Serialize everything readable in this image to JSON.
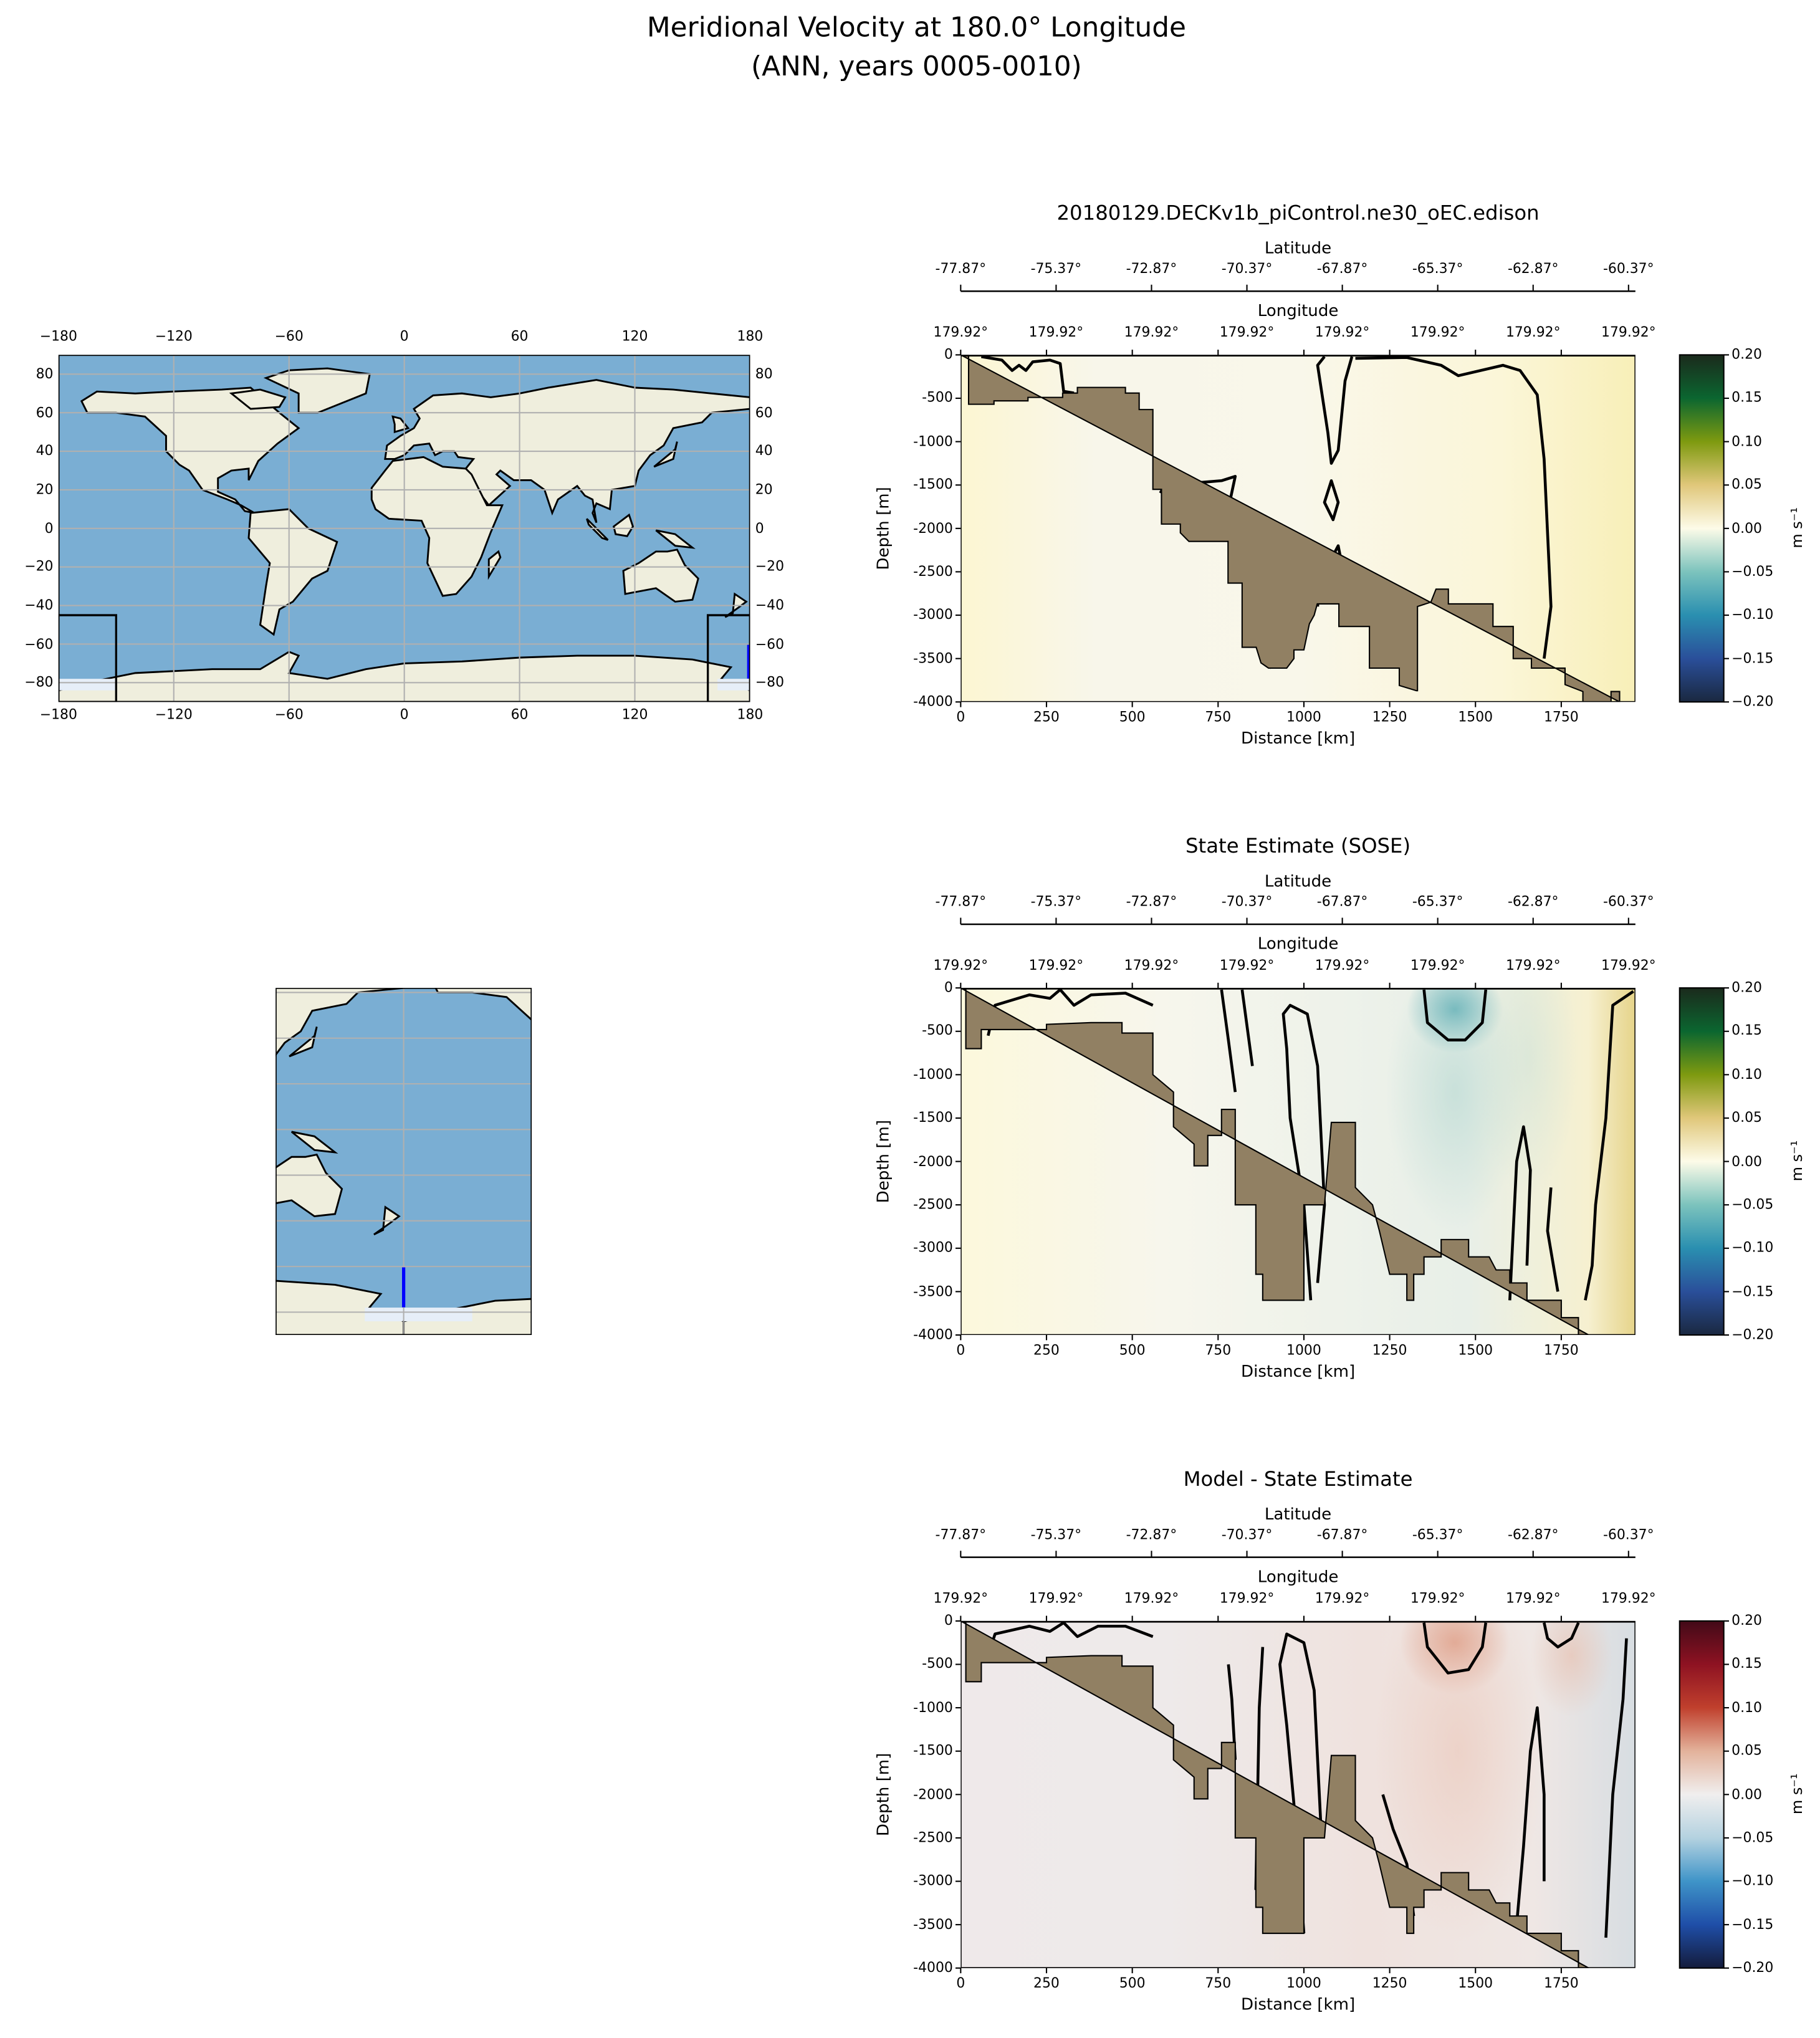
{
  "suptitle": {
    "line1": "Meridional Velocity at 180.0° Longitude",
    "line2": "(ANN, years 0005-0010)"
  },
  "chart_data": {
    "maps": [
      {
        "type": "map",
        "name": "global-map",
        "xticks": [
          "−180",
          "−120",
          "−60",
          "0",
          "60",
          "120",
          "180"
        ],
        "yticks": [
          "80",
          "60",
          "40",
          "20",
          "0",
          "−20",
          "−40",
          "−60",
          "−80"
        ],
        "xlim": [
          -180,
          180
        ],
        "ylim": [
          -90,
          90
        ],
        "grid": true,
        "transect": {
          "lon": 180.0,
          "lat_range": [
            -77.87,
            -60.37
          ],
          "color": "#0000ff"
        }
      },
      {
        "type": "map",
        "name": "regional-map",
        "grid": true,
        "transect": {
          "lon": 180.0,
          "lat_range": [
            -77.87,
            -60.37
          ],
          "color": "#0000ff"
        }
      }
    ],
    "panels": [
      {
        "type": "heatmap",
        "title": "20180129.DECKv1b_piControl.ne30_oEC.edison",
        "field": "model",
        "cmap": [
          "#1a2840",
          "#2a4f9a",
          "#2a8fb0",
          "#7cc3bd",
          "#fdfbe8",
          "#e0c77a",
          "#7e9a10",
          "#0b6630",
          "#1b2a1c"
        ]
      },
      {
        "type": "heatmap",
        "title": "State Estimate (SOSE)",
        "field": "sose",
        "cmap": [
          "#1a2840",
          "#2a4f9a",
          "#2a8fb0",
          "#7cc3bd",
          "#fdfbe8",
          "#e0c77a",
          "#7e9a10",
          "#0b6630",
          "#1b2a1c"
        ]
      },
      {
        "type": "heatmap",
        "title": "Model - State Estimate",
        "field": "diff",
        "cmap": [
          "#141c3c",
          "#1f4ea8",
          "#3f94c8",
          "#b4d2e0",
          "#f0eeee",
          "#e3b29b",
          "#c0402d",
          "#8e1222",
          "#420a18"
        ]
      }
    ],
    "common": {
      "lat_label": "Latitude",
      "lat_ticks": [
        "-77.87°",
        "-75.37°",
        "-72.87°",
        "-70.37°",
        "-67.87°",
        "-65.37°",
        "-62.87°",
        "-60.37°"
      ],
      "lon_label": "Longitude",
      "lon_ticks": [
        "179.92°",
        "179.92°",
        "179.92°",
        "179.92°",
        "179.92°",
        "179.92°",
        "179.92°",
        "179.92°"
      ],
      "xlabel": "Distance [km]",
      "xticks": [
        0,
        250,
        500,
        750,
        1000,
        1250,
        1500,
        1750
      ],
      "xlim": [
        0,
        1966
      ],
      "ylabel": "Depth [m]",
      "yticks": [
        0,
        -500,
        -1000,
        -1500,
        -2000,
        -2500,
        -3000,
        -3500,
        -4000
      ],
      "ylim": [
        -4000,
        0
      ],
      "cbar_label": "m s⁻¹",
      "cbar_ticks": [
        "0.20",
        "0.15",
        "0.10",
        "0.05",
        "0.00",
        "−0.05",
        "−0.10",
        "−0.15",
        "−0.20"
      ],
      "clim": [
        -0.2,
        0.2
      ],
      "land_color": "#918063"
    }
  }
}
